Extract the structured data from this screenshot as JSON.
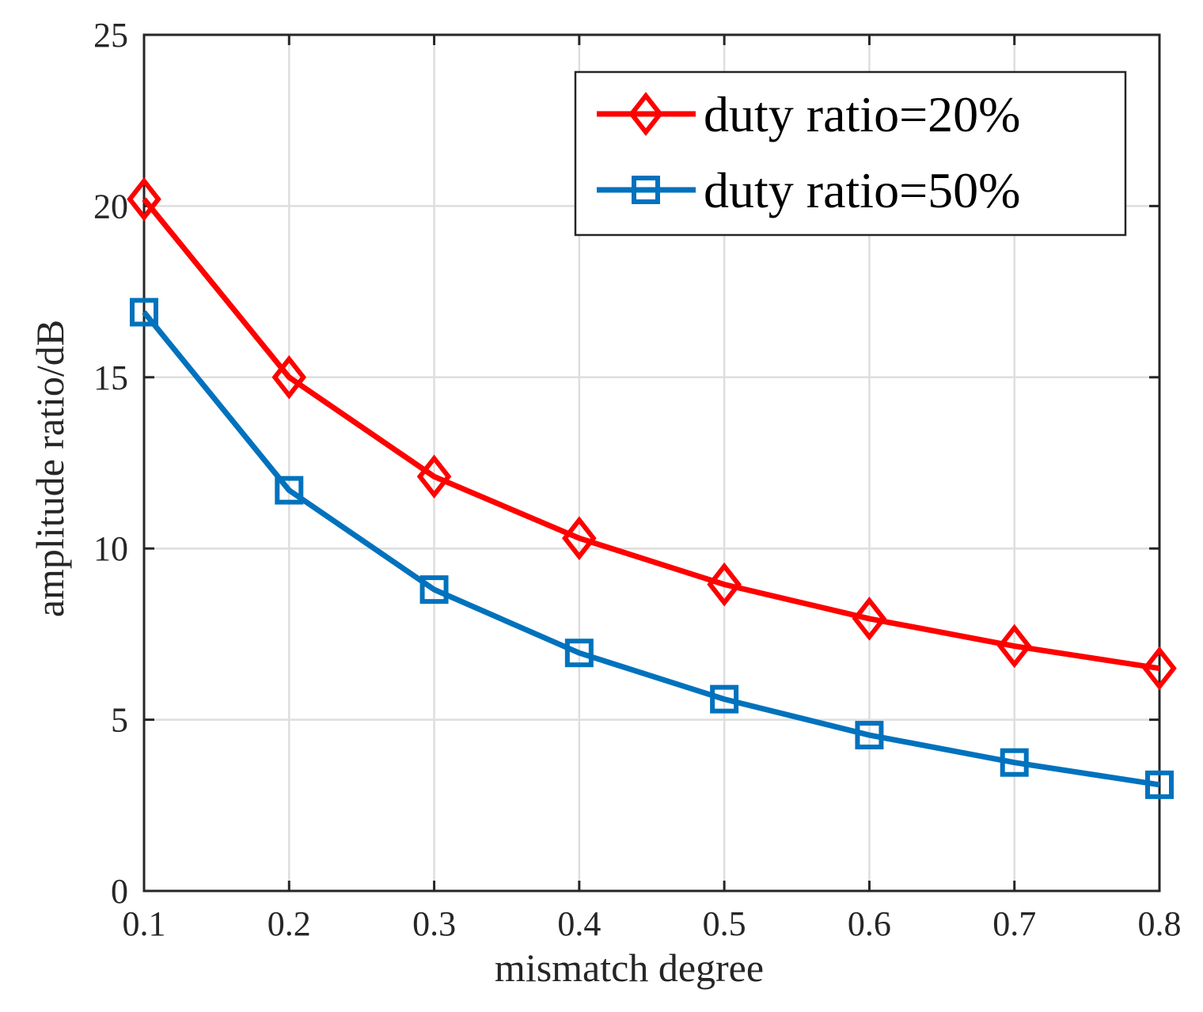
{
  "chart_data": {
    "type": "line",
    "title": "",
    "xlabel": "mismatch degree",
    "ylabel": "amplitude ratio/dB",
    "x": [
      0.1,
      0.2,
      0.3,
      0.4,
      0.5,
      0.6,
      0.7,
      0.8
    ],
    "xlim": [
      0.1,
      0.8
    ],
    "ylim": [
      0,
      25
    ],
    "xticks": [
      "0.1",
      "0.2",
      "0.3",
      "0.4",
      "0.5",
      "0.6",
      "0.7",
      "0.8"
    ],
    "yticks": [
      "0",
      "5",
      "10",
      "15",
      "20",
      "25"
    ],
    "grid": true,
    "legend_position": "top-right",
    "series": [
      {
        "name": "duty ratio=20%",
        "color": "#ff0000",
        "marker": "diamond",
        "values": [
          20.2,
          15.0,
          12.1,
          10.3,
          8.95,
          7.95,
          7.15,
          6.5
        ]
      },
      {
        "name": "duty ratio=50%",
        "color": "#0072bd",
        "marker": "square",
        "values": [
          16.9,
          11.7,
          8.8,
          6.95,
          5.6,
          4.55,
          3.75,
          3.1
        ]
      }
    ]
  }
}
